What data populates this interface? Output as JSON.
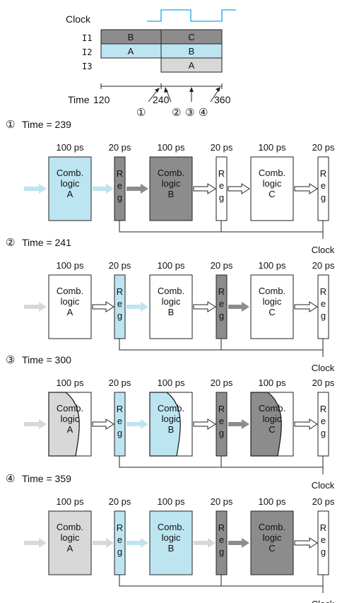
{
  "timing": {
    "clock_label": "Clock",
    "rows": [
      {
        "label": "I1",
        "segments": [
          {
            "text": "B",
            "fill": "#8c8c8c"
          },
          {
            "text": "C",
            "fill": "#8c8c8c"
          }
        ]
      },
      {
        "label": "I2",
        "segments": [
          {
            "text": "A",
            "fill": "#bde4f1"
          },
          {
            "text": "B",
            "fill": "#bde4f1"
          }
        ]
      },
      {
        "label": "I3",
        "segments": [
          {
            "text": "",
            "fill": "none"
          },
          {
            "text": "A",
            "fill": "#d8d8d8"
          }
        ]
      }
    ],
    "time_label": "Time",
    "tick_labels": [
      "120",
      "240",
      "360"
    ],
    "markers": [
      "①",
      "②",
      "③",
      "④"
    ],
    "clock_color": "#3fb6e8"
  },
  "labels": {
    "delay_logic": "100 ps",
    "delay_reg": "20 ps",
    "reg_letters": [
      "R",
      "e",
      "g"
    ],
    "clock": "Clock"
  },
  "colors": {
    "blue": "#bde4f1",
    "dark": "#8c8c8c",
    "light": "#d8d8d8",
    "white": "#ffffff"
  },
  "panels": [
    {
      "marker": "①",
      "title": "Time = 239",
      "input_arrow": "blue",
      "blocks": [
        {
          "lines": [
            "Comb.",
            "logic",
            "A"
          ],
          "fill": "blue",
          "wave": false
        },
        {
          "lines": [
            "Comb.",
            "logic",
            "B"
          ],
          "fill": "dark",
          "wave": false
        },
        {
          "lines": [
            "Comb.",
            "logic",
            "C"
          ],
          "fill": "white",
          "wave": false
        }
      ],
      "regs": [
        "dark",
        "white",
        "white"
      ],
      "arrows": [
        "blue",
        "dark",
        "white",
        "white"
      ]
    },
    {
      "marker": "②",
      "title": "Time = 241",
      "input_arrow": "light",
      "blocks": [
        {
          "lines": [
            "Comb.",
            "logic",
            "A"
          ],
          "fill": "white",
          "wave": false
        },
        {
          "lines": [
            "Comb.",
            "logic",
            "B"
          ],
          "fill": "white",
          "wave": false
        },
        {
          "lines": [
            "Comb.",
            "logic",
            "C"
          ],
          "fill": "white",
          "wave": false
        }
      ],
      "regs": [
        "blue",
        "dark",
        "white"
      ],
      "arrows": [
        "white",
        "blue",
        "white",
        "dark"
      ]
    },
    {
      "marker": "③",
      "title": "Time = 300",
      "input_arrow": "light",
      "blocks": [
        {
          "lines": [
            "Comb.",
            "logic",
            "A"
          ],
          "fill": "light",
          "wave": true
        },
        {
          "lines": [
            "Comb.",
            "logic",
            "B"
          ],
          "fill": "blue",
          "wave": true
        },
        {
          "lines": [
            "Comb.",
            "logic",
            "C"
          ],
          "fill": "dark",
          "wave": true
        }
      ],
      "regs": [
        "blue",
        "dark",
        "white"
      ],
      "arrows": [
        "white",
        "blue",
        "white",
        "dark"
      ]
    },
    {
      "marker": "④",
      "title": "Time = 359",
      "input_arrow": "light",
      "blocks": [
        {
          "lines": [
            "Comb.",
            "logic",
            "A"
          ],
          "fill": "light",
          "wave": false
        },
        {
          "lines": [
            "Comb.",
            "logic",
            "B"
          ],
          "fill": "blue",
          "wave": false
        },
        {
          "lines": [
            "Comb.",
            "logic",
            "C"
          ],
          "fill": "dark",
          "wave": false
        }
      ],
      "regs": [
        "blue",
        "dark",
        "white"
      ],
      "arrows": [
        "light",
        "blue",
        "light",
        "dark"
      ]
    }
  ]
}
